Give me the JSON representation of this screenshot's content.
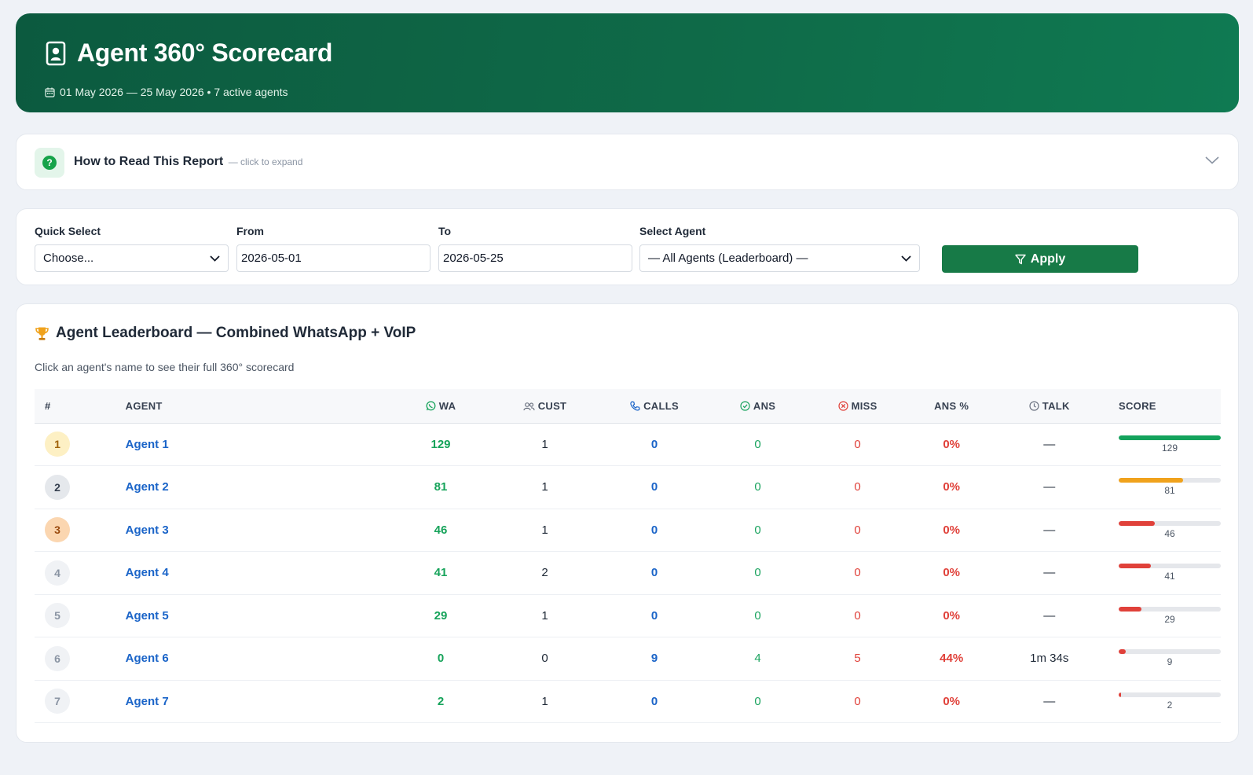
{
  "header": {
    "title": "Agent 360° Scorecard",
    "subtitle": "01 May 2026 — 25 May 2026 • 7 active agents"
  },
  "howto": {
    "title": "How to Read This Report",
    "hint": "— click to expand"
  },
  "filters": {
    "quick_select": {
      "label": "Quick Select",
      "value": "Choose..."
    },
    "from": {
      "label": "From",
      "value": "2026-05-01"
    },
    "to": {
      "label": "To",
      "value": "2026-05-25"
    },
    "agent": {
      "label": "Select Agent",
      "value": "— All Agents (Leaderboard) —"
    },
    "apply_label": "Apply"
  },
  "leaderboard": {
    "title": "Agent Leaderboard — Combined WhatsApp + VoIP",
    "subtitle": "Click an agent's name to see their full 360° scorecard",
    "columns": {
      "rank": "#",
      "agent": "AGENT",
      "wa": "WA",
      "cust": "CUST",
      "calls": "CALLS",
      "ans": "ANS",
      "miss": "MISS",
      "ans_pct": "ANS %",
      "talk": "TALK",
      "score": "SCORE"
    },
    "max_score": 129,
    "rows": [
      {
        "rank": "1",
        "agent": "Agent 1",
        "wa": "129",
        "cust": "1",
        "calls": "0",
        "ans": "0",
        "miss": "0",
        "ans_pct": "0%",
        "talk": "—",
        "score": 129,
        "score_label": "129",
        "rank_bg": "#fdf0c4",
        "rank_color": "#a16207",
        "bar_color": "#14a35c"
      },
      {
        "rank": "2",
        "agent": "Agent 2",
        "wa": "81",
        "cust": "1",
        "calls": "0",
        "ans": "0",
        "miss": "0",
        "ans_pct": "0%",
        "talk": "—",
        "score": 81,
        "score_label": "81",
        "rank_bg": "#e5e8ec",
        "rank_color": "#374151",
        "bar_color": "#f0a21c"
      },
      {
        "rank": "3",
        "agent": "Agent 3",
        "wa": "46",
        "cust": "1",
        "calls": "0",
        "ans": "0",
        "miss": "0",
        "ans_pct": "0%",
        "talk": "—",
        "score": 46,
        "score_label": "46",
        "rank_bg": "#fbd6b0",
        "rank_color": "#9a4a0e",
        "bar_color": "#e0413a"
      },
      {
        "rank": "4",
        "agent": "Agent 4",
        "wa": "41",
        "cust": "2",
        "calls": "0",
        "ans": "0",
        "miss": "0",
        "ans_pct": "0%",
        "talk": "—",
        "score": 41,
        "score_label": "41",
        "rank_bg": "#f0f2f5",
        "rank_color": "#8a94a3",
        "bar_color": "#e0413a"
      },
      {
        "rank": "5",
        "agent": "Agent 5",
        "wa": "29",
        "cust": "1",
        "calls": "0",
        "ans": "0",
        "miss": "0",
        "ans_pct": "0%",
        "talk": "—",
        "score": 29,
        "score_label": "29",
        "rank_bg": "#f0f2f5",
        "rank_color": "#8a94a3",
        "bar_color": "#e0413a"
      },
      {
        "rank": "6",
        "agent": "Agent 6",
        "wa": "0",
        "cust": "0",
        "calls": "9",
        "ans": "4",
        "miss": "5",
        "ans_pct": "44%",
        "talk": "1m 34s",
        "score": 9,
        "score_label": "9",
        "rank_bg": "#f0f2f5",
        "rank_color": "#8a94a3",
        "bar_color": "#e0413a"
      },
      {
        "rank": "7",
        "agent": "Agent 7",
        "wa": "2",
        "cust": "1",
        "calls": "0",
        "ans": "0",
        "miss": "0",
        "ans_pct": "0%",
        "talk": "—",
        "score": 2,
        "score_label": "2",
        "rank_bg": "#f0f2f5",
        "rank_color": "#8a94a3",
        "bar_color": "#e0413a"
      }
    ]
  }
}
